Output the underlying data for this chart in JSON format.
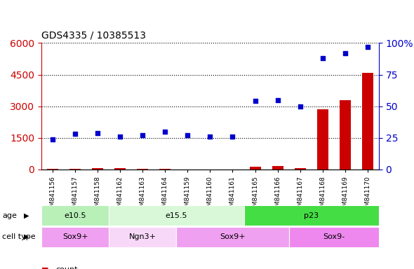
{
  "title": "GDS4335 / 10385513",
  "samples": [
    "GSM841156",
    "GSM841157",
    "GSM841158",
    "GSM841162",
    "GSM841163",
    "GSM841164",
    "GSM841159",
    "GSM841160",
    "GSM841161",
    "GSM841165",
    "GSM841166",
    "GSM841167",
    "GSM841168",
    "GSM841169",
    "GSM841170"
  ],
  "count_values": [
    15,
    30,
    50,
    60,
    20,
    25,
    10,
    8,
    12,
    130,
    160,
    80,
    2850,
    3300,
    4600
  ],
  "percentile_values": [
    24,
    28,
    29,
    26,
    27,
    30,
    27,
    26,
    26,
    54,
    55,
    50,
    88,
    92,
    97
  ],
  "ylim_left": [
    0,
    6000
  ],
  "ylim_right": [
    0,
    100
  ],
  "yticks_left": [
    0,
    1500,
    3000,
    4500,
    6000
  ],
  "yticks_right": [
    0,
    25,
    50,
    75,
    100
  ],
  "age_groups": [
    {
      "label": "e10.5",
      "start": 0,
      "end": 3,
      "color": "#b8f0b8"
    },
    {
      "label": "e15.5",
      "start": 3,
      "end": 9,
      "color": "#d8f8d8"
    },
    {
      "label": "p23",
      "start": 9,
      "end": 15,
      "color": "#44dd44"
    }
  ],
  "cell_type_groups": [
    {
      "label": "Sox9+",
      "start": 0,
      "end": 3,
      "color": "#f0a0f0"
    },
    {
      "label": "Ngn3+",
      "start": 3,
      "end": 6,
      "color": "#f8d8f8"
    },
    {
      "label": "Sox9+",
      "start": 6,
      "end": 11,
      "color": "#f0a0f0"
    },
    {
      "label": "Sox9-",
      "start": 11,
      "end": 15,
      "color": "#ee88ee"
    }
  ],
  "bar_color": "#cc0000",
  "dot_color": "#0000cc",
  "left_axis_color": "#cc0000",
  "right_axis_color": "#0000cc",
  "background_color": "#ffffff",
  "grid_color": "#000000"
}
